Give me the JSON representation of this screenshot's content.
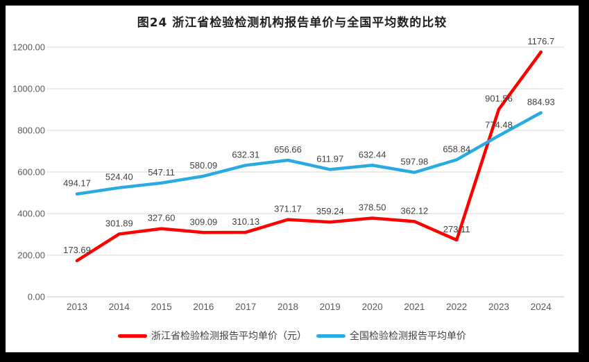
{
  "window": {
    "frame_color": "#000000",
    "background": "#FFFFFF"
  },
  "chart_data": {
    "type": "line",
    "title": "图24  浙江省检验检测机构报告单价与全国平均数的比较",
    "categories": [
      "2013",
      "2014",
      "2015",
      "2016",
      "2017",
      "2018",
      "2019",
      "2020",
      "2021",
      "2022",
      "2023",
      "2024"
    ],
    "series": [
      {
        "name": "浙江省检验检测报告平均单价（元）",
        "color": "#FF0000",
        "values": [
          173.69,
          301.89,
          327.6,
          309.09,
          310.13,
          371.17,
          359.24,
          378.5,
          362.12,
          273.11,
          901.56,
          1176.7
        ],
        "labels": [
          "173.69",
          "301.89",
          "327.60",
          "309.09",
          "310.13",
          "371.17",
          "359.24",
          "378.50",
          "362.12",
          "273.11",
          "901.56",
          "1176.7"
        ]
      },
      {
        "name": "全国检验检测报告平均单价",
        "color": "#29ABE2",
        "values": [
          494.17,
          524.4,
          547.11,
          580.09,
          632.31,
          656.66,
          611.97,
          632.44,
          597.98,
          658.84,
          774.48,
          884.93
        ],
        "labels": [
          "494.17",
          "524.40",
          "547.11",
          "580.09",
          "632.31",
          "656.66",
          "611.97",
          "632.44",
          "597.98",
          "658.84",
          "774.48",
          "884.93"
        ]
      }
    ],
    "y_tick_labels": [
      "0.00",
      "200.00",
      "400.00",
      "600.00",
      "800.00",
      "1000.00",
      "1200.00"
    ],
    "y_tick_step": 200,
    "ylim": [
      0,
      1200
    ],
    "grid": true,
    "legend_position": "bottom",
    "colors": {
      "gridline": "#D9D9D9",
      "axis": "#C6C6C6",
      "tick_label": "#595959",
      "data_label": "#404040",
      "title": "#1F1F1F"
    }
  }
}
